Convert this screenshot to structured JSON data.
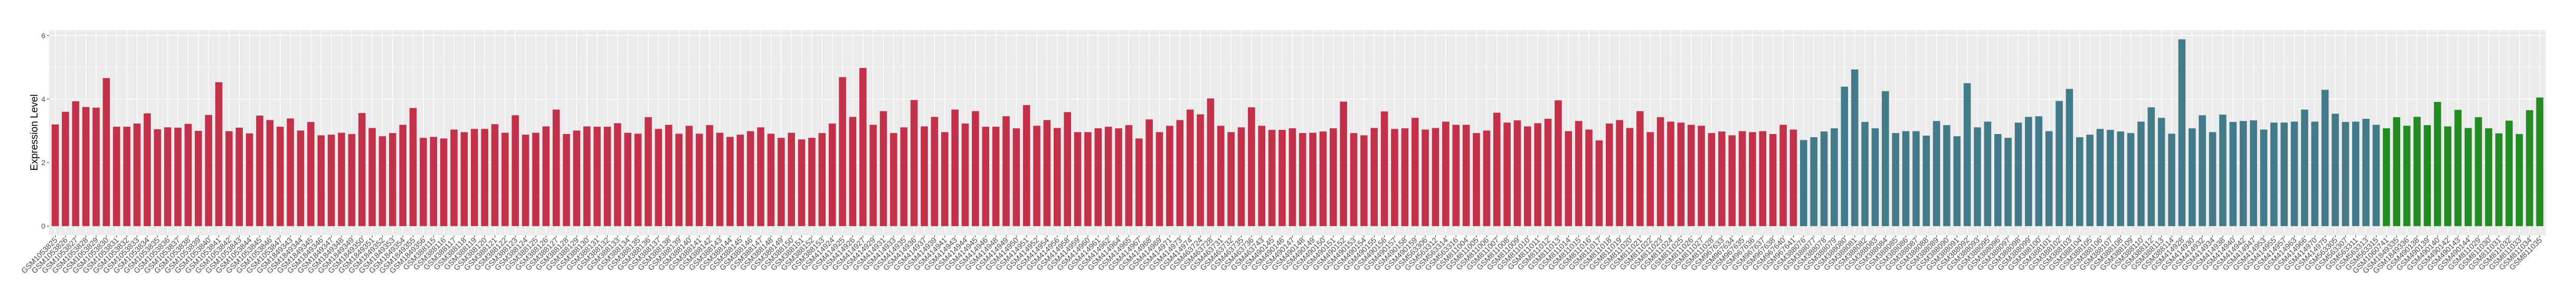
{
  "chart_data": {
    "type": "bar",
    "title": "",
    "xlabel": "",
    "ylabel": "Expression Level",
    "ylim": [
      -0.3,
      6.2
    ],
    "yticks": [
      "0",
      "2",
      "4",
      "6"
    ],
    "grid": true,
    "legend": "none",
    "background": "#EBEBEB",
    "bar_color_runs": [
      {
        "color": "#C3304A",
        "count": 171
      },
      {
        "color": "#427A8A",
        "count": 57
      },
      {
        "color": "#228B22",
        "count": 16
      }
    ],
    "categories": [
      "GSM1053825",
      "GSM1053826",
      "GSM1053827",
      "GSM1053828",
      "GSM1053829",
      "GSM1053830",
      "GSM1053831",
      "GSM1053832",
      "GSM1053833",
      "GSM1053834",
      "GSM1053835",
      "GSM1053836",
      "GSM1053837",
      "GSM1053838",
      "GSM1053839",
      "GSM1053840",
      "GSM1053841",
      "GSM1053842",
      "GSM1053843",
      "GSM1053844",
      "GSM1053845",
      "GSM1053846",
      "GSM1053847",
      "GSM1849343",
      "GSM1849344",
      "GSM1849345",
      "GSM1849346",
      "GSM1849347",
      "GSM1849348",
      "GSM1849349",
      "GSM1849350",
      "GSM1849351",
      "GSM1849352",
      "GSM1849353",
      "GSM1849354",
      "GSM1849355",
      "GSM1849356",
      "GSM388115",
      "GSM388116",
      "GSM388117",
      "GSM388118",
      "GSM388119",
      "GSM388120",
      "GSM388121",
      "GSM388122",
      "GSM388123",
      "GSM388124",
      "GSM388125",
      "GSM388126",
      "GSM388127",
      "GSM388128",
      "GSM388129",
      "GSM388130",
      "GSM388131",
      "GSM388132",
      "GSM388133",
      "GSM388134",
      "GSM388135",
      "GSM388136",
      "GSM388137",
      "GSM388138",
      "GSM388139",
      "GSM388140",
      "GSM388141",
      "GSM388142",
      "GSM388143",
      "GSM388144",
      "GSM388145",
      "GSM388146",
      "GSM388147",
      "GSM388148",
      "GSM388149",
      "GSM388150",
      "GSM388151",
      "GSM388152",
      "GSM388153",
      "GSM414924",
      "GSM414925",
      "GSM414926",
      "GSM414927",
      "GSM414929",
      "GSM414931",
      "GSM414933",
      "GSM414935",
      "GSM414936",
      "GSM414937",
      "GSM414939",
      "GSM414941",
      "GSM414943",
      "GSM414944",
      "GSM414945",
      "GSM414946",
      "GSM414948",
      "GSM414949",
      "GSM414950",
      "GSM414951",
      "GSM414952",
      "GSM414954",
      "GSM414956",
      "GSM414958",
      "GSM414959",
      "GSM414960",
      "GSM414961",
      "GSM414962",
      "GSM414964",
      "GSM414965",
      "GSM414967",
      "GSM414968",
      "GSM414969",
      "GSM414971",
      "GSM414973",
      "GSM414974",
      "GSM463724",
      "GSM463728",
      "GSM463731",
      "GSM463732",
      "GSM463735",
      "GSM463736",
      "GSM463743",
      "GSM490145",
      "GSM490146",
      "GSM490147",
      "GSM490148",
      "GSM490149",
      "GSM490150",
      "GSM490151",
      "GSM490152",
      "GSM490153",
      "GSM490154",
      "GSM490155",
      "GSM490156",
      "GSM490157",
      "GSM490158",
      "GSM490159",
      "GSM563306",
      "GSM563312",
      "GSM563314",
      "GSM563316",
      "GSM811004",
      "GSM811005",
      "GSM811006",
      "GSM811007",
      "GSM811008",
      "GSM811009",
      "GSM811010",
      "GSM811011",
      "GSM811012",
      "GSM811013",
      "GSM811014",
      "GSM811015",
      "GSM811016",
      "GSM811017",
      "GSM811018",
      "GSM811019",
      "GSM811020",
      "GSM811021",
      "GSM811022",
      "GSM811023",
      "GSM811024",
      "GSM811025",
      "GSM811026",
      "GSM811027",
      "GSM811028",
      "GSM967633",
      "GSM967634",
      "GSM967635",
      "GSM967636",
      "GSM967637",
      "GSM967638",
      "GSM967640",
      "GSM967641",
      "GSM388076",
      "GSM388077",
      "GSM388078",
      "GSM388079",
      "GSM388080",
      "GSM388081",
      "GSM388082",
      "GSM388083",
      "GSM388084",
      "GSM388085",
      "GSM388086",
      "GSM388087",
      "GSM388088",
      "GSM388089",
      "GSM388090",
      "GSM388091",
      "GSM388092",
      "GSM388093",
      "GSM388095",
      "GSM388096",
      "GSM388097",
      "GSM388098",
      "GSM388099",
      "GSM388100",
      "GSM388101",
      "GSM388102",
      "GSM388103",
      "GSM388104",
      "GSM388105",
      "GSM388106",
      "GSM388107",
      "GSM388108",
      "GSM388109",
      "GSM388110",
      "GSM388112",
      "GSM388113",
      "GSM388114",
      "GSM414928",
      "GSM414930",
      "GSM414932",
      "GSM414934",
      "GSM414938",
      "GSM414940",
      "GSM414942",
      "GSM414947",
      "GSM414953",
      "GSM414955",
      "GSM414957",
      "GSM414963",
      "GSM414966",
      "GSM414970",
      "GSM414975",
      "GSM563305",
      "GSM563307",
      "GSM563311",
      "GSM563313",
      "GSM563315",
      "GSM1060741",
      "GSM1849335",
      "GSM1849336",
      "GSM490138",
      "GSM490139",
      "GSM490140",
      "GSM490142",
      "GSM490143",
      "GSM490144",
      "GSM811029",
      "GSM811030",
      "GSM811031",
      "GSM811032",
      "GSM811033",
      "GSM811034",
      "GSM811035"
    ],
    "values": [
      3.2,
      3.6,
      3.93,
      3.75,
      3.73,
      4.66,
      3.13,
      3.13,
      3.23,
      3.55,
      3.05,
      3.11,
      3.1,
      3.22,
      3.0,
      3.5,
      4.53,
      2.99,
      3.1,
      2.92,
      3.48,
      3.34,
      3.13,
      3.39,
      3.01,
      3.28,
      2.86,
      2.88,
      2.94,
      2.9,
      3.56,
      3.09,
      2.83,
      2.93,
      3.19,
      3.72,
      2.78,
      2.81,
      2.76,
      3.04,
      2.96,
      3.06,
      3.06,
      3.21,
      2.94,
      3.49,
      2.88,
      2.94,
      3.14,
      3.67,
      2.9,
      3.01,
      3.14,
      3.13,
      3.13,
      3.24,
      2.94,
      2.91,
      3.43,
      3.06,
      3.19,
      2.91,
      3.16,
      2.91,
      3.18,
      2.94,
      2.81,
      2.88,
      2.99,
      3.11,
      2.91,
      2.78,
      2.94,
      2.73,
      2.78,
      2.93,
      3.23,
      4.69,
      3.44,
      4.98,
      3.19,
      3.62,
      2.93,
      3.11,
      3.97,
      3.14,
      3.44,
      2.96,
      3.67,
      3.23,
      3.62,
      3.13,
      3.13,
      3.46,
      3.08,
      3.81,
      3.16,
      3.34,
      3.09,
      3.59,
      2.96,
      2.96,
      3.08,
      3.13,
      3.08,
      3.18,
      2.76,
      3.36,
      2.96,
      3.16,
      3.34,
      3.67,
      3.52,
      4.02,
      3.16,
      2.96,
      3.11,
      3.74,
      3.16,
      3.03,
      3.03,
      3.08,
      2.93,
      2.94,
      2.98,
      3.08,
      3.92,
      2.93,
      2.86,
      3.09,
      3.61,
      3.06,
      3.08,
      3.41,
      3.04,
      3.09,
      3.29,
      3.19,
      3.19,
      2.93,
      3.01,
      3.57,
      3.26,
      3.33,
      3.14,
      3.24,
      3.38,
      3.96,
      2.99,
      3.31,
      3.04,
      2.7,
      3.23,
      3.34,
      3.09,
      3.62,
      2.96,
      3.43,
      3.29,
      3.26,
      3.19,
      3.16,
      2.93,
      2.98,
      2.86,
      2.99,
      2.96,
      2.99,
      2.9,
      3.19,
      3.04,
      2.71,
      2.8,
      2.98,
      3.08,
      4.39,
      4.93,
      3.28,
      3.08,
      4.25,
      2.93,
      2.99,
      2.99,
      2.85,
      3.31,
      3.18,
      2.83,
      4.5,
      3.11,
      3.29,
      2.9,
      2.78,
      3.26,
      3.44,
      3.46,
      2.99,
      3.94,
      4.32,
      2.8,
      2.88,
      3.06,
      3.03,
      2.98,
      2.93,
      3.29,
      3.74,
      3.41,
      2.91,
      5.88,
      3.08,
      3.49,
      2.96,
      3.51,
      3.28,
      3.31,
      3.33,
      3.04,
      3.26,
      3.26,
      3.29,
      3.67,
      3.29,
      4.29,
      3.54,
      3.28,
      3.29,
      3.38,
      3.19,
      3.08,
      3.43,
      3.16,
      3.44,
      3.18,
      3.91,
      3.14,
      3.66,
      3.09,
      3.43,
      3.08,
      2.92,
      3.32,
      2.9,
      3.65,
      4.05
    ]
  }
}
